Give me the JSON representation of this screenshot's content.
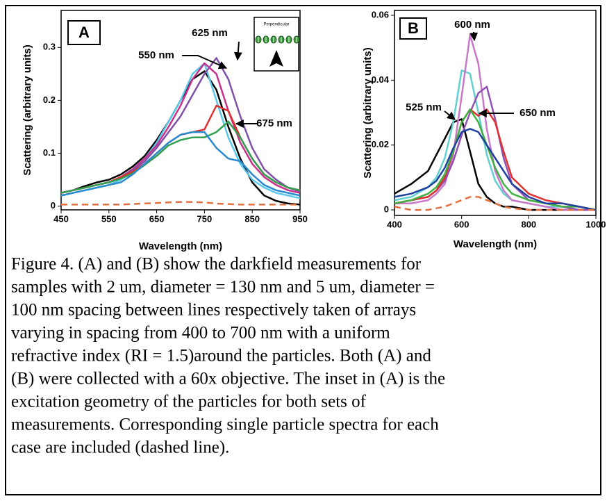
{
  "chart_data": [
    {
      "type": "line",
      "panel_label": "A",
      "inset_label": "Perpendicular",
      "ylabel": "Scattering (arbitrary units)",
      "xlabel": "Wavelength (nm)",
      "xlim": [
        450,
        950
      ],
      "xticks": [
        450,
        550,
        650,
        750,
        850,
        950
      ],
      "ylim": [
        -0.007,
        0.37
      ],
      "yticks": [
        0,
        0.1,
        0.2,
        0.3
      ],
      "annotations": [
        "550 nm",
        "625 nm",
        "675 nm"
      ],
      "x": [
        450,
        475,
        500,
        525,
        550,
        575,
        600,
        625,
        650,
        675,
        700,
        725,
        750,
        775,
        800,
        825,
        850,
        875,
        900,
        925,
        950
      ],
      "series": [
        {
          "color": "#000000",
          "values": [
            0.025,
            0.03,
            0.038,
            0.045,
            0.05,
            0.06,
            0.075,
            0.095,
            0.125,
            0.16,
            0.2,
            0.24,
            0.255,
            0.22,
            0.15,
            0.09,
            0.045,
            0.02,
            0.01,
            0.005,
            0.003
          ]
        },
        {
          "color": "#5cc8ea",
          "values": [
            0.02,
            0.025,
            0.03,
            0.035,
            0.04,
            0.05,
            0.07,
            0.09,
            0.12,
            0.16,
            0.2,
            0.25,
            0.27,
            0.2,
            0.13,
            0.08,
            0.05,
            0.035,
            0.025,
            0.02,
            0.015
          ]
        },
        {
          "color": "#c8308c",
          "values": [
            0.025,
            0.03,
            0.035,
            0.04,
            0.045,
            0.055,
            0.07,
            0.09,
            0.115,
            0.15,
            0.19,
            0.24,
            0.27,
            0.25,
            0.18,
            0.12,
            0.08,
            0.055,
            0.04,
            0.03,
            0.025
          ]
        },
        {
          "color": "#8050a8",
          "values": [
            0.025,
            0.03,
            0.035,
            0.04,
            0.045,
            0.055,
            0.068,
            0.085,
            0.11,
            0.14,
            0.17,
            0.21,
            0.25,
            0.28,
            0.24,
            0.17,
            0.11,
            0.07,
            0.05,
            0.035,
            0.028
          ]
        },
        {
          "color": "#e03030",
          "values": [
            0.025,
            0.03,
            0.035,
            0.04,
            0.045,
            0.055,
            0.065,
            0.08,
            0.1,
            0.12,
            0.135,
            0.14,
            0.145,
            0.19,
            0.18,
            0.13,
            0.09,
            0.06,
            0.045,
            0.035,
            0.03
          ]
        },
        {
          "color": "#30a050",
          "values": [
            0.025,
            0.03,
            0.035,
            0.04,
            0.045,
            0.052,
            0.062,
            0.078,
            0.095,
            0.115,
            0.125,
            0.13,
            0.13,
            0.14,
            0.16,
            0.13,
            0.09,
            0.06,
            0.045,
            0.035,
            0.03
          ]
        },
        {
          "color": "#2a8ad0",
          "values": [
            0.02,
            0.025,
            0.03,
            0.035,
            0.04,
            0.045,
            0.06,
            0.08,
            0.1,
            0.12,
            0.135,
            0.14,
            0.14,
            0.11,
            0.09,
            0.085,
            0.06,
            0.04,
            0.03,
            0.025,
            0.02
          ]
        },
        {
          "color": "#e07040",
          "dashed": true,
          "values": [
            0.003,
            0.003,
            0.003,
            0.003,
            0.003,
            0.003,
            0.004,
            0.005,
            0.006,
            0.007,
            0.008,
            0.008,
            0.007,
            0.005,
            0.004,
            0.003,
            0.003,
            0.003,
            0.003,
            0.003,
            0.003
          ]
        }
      ]
    },
    {
      "type": "line",
      "panel_label": "B",
      "ylabel": "Scattering (arbitrary units)",
      "xlabel": "Wavelength (nm)",
      "xlim": [
        400,
        1000
      ],
      "xticks": [
        400,
        600,
        800,
        1000
      ],
      "ylim": [
        -0.0017,
        0.0615
      ],
      "yticks": [
        0,
        0.02,
        0.04,
        0.06
      ],
      "annotations": [
        "600 nm",
        "525 nm",
        "650 nm"
      ],
      "x": [
        400,
        450,
        500,
        525,
        550,
        575,
        600,
        625,
        650,
        675,
        700,
        725,
        750,
        800,
        850,
        900,
        950,
        1000
      ],
      "series": [
        {
          "color": "#000000",
          "values": [
            0.005,
            0.008,
            0.012,
            0.017,
            0.022,
            0.027,
            0.028,
            0.018,
            0.008,
            0.004,
            0.002,
            0.001,
            0.001,
            0,
            0,
            0,
            0,
            0
          ]
        },
        {
          "color": "#60d0d0",
          "values": [
            0.003,
            0.004,
            0.007,
            0.01,
            0.016,
            0.027,
            0.043,
            0.042,
            0.03,
            0.017,
            0.009,
            0.005,
            0.003,
            0.002,
            0.001,
            0.001,
            0,
            0
          ]
        },
        {
          "color": "#c878c8",
          "values": [
            0.002,
            0.002,
            0.003,
            0.005,
            0.008,
            0.017,
            0.035,
            0.054,
            0.045,
            0.025,
            0.012,
            0.006,
            0.003,
            0.002,
            0.001,
            0,
            0,
            0
          ]
        },
        {
          "color": "#9050b0",
          "values": [
            0.002,
            0.003,
            0.004,
            0.006,
            0.009,
            0.015,
            0.023,
            0.03,
            0.036,
            0.038,
            0.028,
            0.016,
            0.008,
            0.003,
            0.002,
            0.001,
            0,
            0
          ]
        },
        {
          "color": "#e03030",
          "values": [
            0.002,
            0.003,
            0.004,
            0.006,
            0.01,
            0.018,
            0.027,
            0.031,
            0.029,
            0.031,
            0.027,
            0.018,
            0.01,
            0.005,
            0.003,
            0.002,
            0.001,
            0
          ]
        },
        {
          "color": "#40b040",
          "values": [
            0.002,
            0.003,
            0.005,
            0.007,
            0.011,
            0.018,
            0.027,
            0.031,
            0.027,
            0.02,
            0.013,
            0.008,
            0.005,
            0.003,
            0.002,
            0.001,
            0.001,
            0
          ]
        },
        {
          "color": "#2040a0",
          "values": [
            0.004,
            0.005,
            0.007,
            0.009,
            0.013,
            0.019,
            0.024,
            0.025,
            0.024,
            0.02,
            0.016,
            0.012,
            0.008,
            0.004,
            0.002,
            0.002,
            0.001,
            0
          ]
        },
        {
          "color": "#e07040",
          "dashed": true,
          "values": [
            0.001,
            0,
            0,
            0.0005,
            0.001,
            0.002,
            0.003,
            0.004,
            0.004,
            0.003,
            0.002,
            0.001,
            0.0005,
            0,
            0,
            0,
            0,
            0
          ]
        }
      ]
    }
  ],
  "caption": [
    "Figure 4.  (A) and (B) show the darkfield measurements for",
    "samples with 2 um, diameter = 130 nm and 5 um, diameter =",
    "100 nm spacing between lines respectively taken of arrays",
    "varying in spacing from 400 to 700 nm with a uniform",
    "refractive index (RI = 1.5)around the particles. Both (A) and",
    "(B) were collected with a 60x objective.  The inset in (A) is the",
    "excitation geometry of the particles for both sets of",
    "measurements. Corresponding single particle spectra for each",
    "case are included (dashed line)."
  ]
}
